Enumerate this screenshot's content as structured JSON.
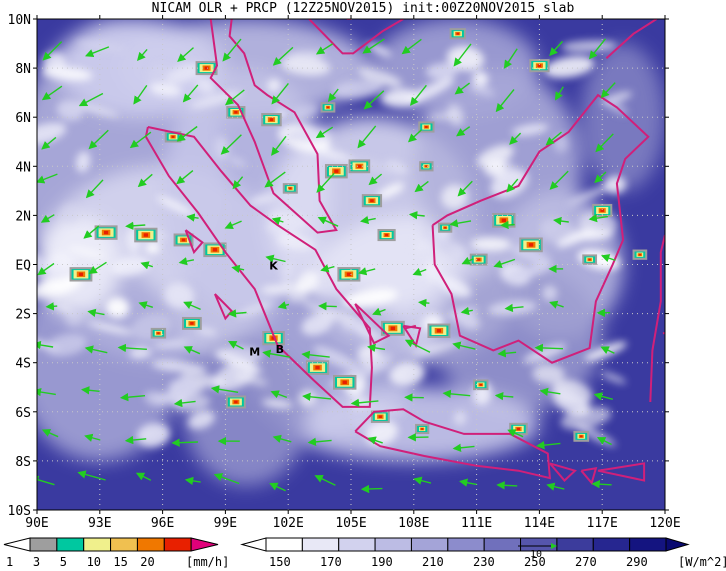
{
  "title": "NICAM OLR + PRCP (12Z25NOV2015) init:00Z20NOV2015 slab",
  "map": {
    "lat_labels": [
      "10N",
      "8N",
      "6N",
      "4N",
      "2N",
      "EQ",
      "2S",
      "4S",
      "6S",
      "8S",
      "10S"
    ],
    "lon_labels": [
      "90E",
      "93E",
      "96E",
      "99E",
      "102E",
      "105E",
      "108E",
      "111E",
      "114E",
      "117E",
      "120E"
    ],
    "lat_range": [
      -10,
      10
    ],
    "lon_range": [
      90,
      120
    ],
    "grid": "dotted",
    "coastline_color": "#d0207a",
    "vector_color": "#22cc22",
    "station_labels": [
      {
        "text": "K",
        "lon": 101.3,
        "lat": -0.2
      },
      {
        "text": "M",
        "lon": 100.4,
        "lat": -3.7
      },
      {
        "text": "B",
        "lon": 101.6,
        "lat": -3.6
      }
    ],
    "reference_vector_label": "10"
  },
  "precip_colorbar": {
    "ticks": [
      "1",
      "3",
      "5",
      "10",
      "15",
      "20"
    ],
    "units": "[mm/h]",
    "colors": [
      "#9e9e9e",
      "#00c8a0",
      "#f0f08c",
      "#f0c050",
      "#f07800",
      "#e82000",
      "#e0007a"
    ]
  },
  "olr_colorbar": {
    "ticks": [
      "150",
      "170",
      "190",
      "210",
      "230",
      "250",
      "270",
      "290"
    ],
    "units": "[W/m^2]",
    "colors": [
      "#ffffff",
      "#e8e8f6",
      "#d2d2ee",
      "#bcbce4",
      "#a4a4d8",
      "#8c8ccc",
      "#7070bc",
      "#5656ac",
      "#3c3c9c",
      "#262690",
      "#141480"
    ]
  }
}
